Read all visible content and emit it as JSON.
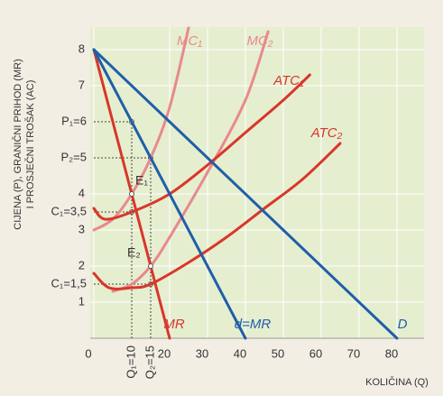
{
  "chart_data": {
    "type": "line",
    "y_axis_label": [
      "CIJENA (P), GRANIČNI PRIHOD (MR)",
      "I PROSJEČNI TROŠAK (AC)"
    ],
    "x_axis_label": "KOLIČINA (Q)",
    "xlim": [
      0,
      85
    ],
    "ylim": [
      0,
      8.5
    ],
    "xticks": [
      0,
      20,
      30,
      40,
      50,
      60,
      70,
      80
    ],
    "yticks": [
      1,
      2,
      3,
      4,
      7,
      8
    ],
    "grid": true,
    "series": [
      {
        "name": "MC₁",
        "color": "#e8898e",
        "x": [
          0,
          5,
          10,
          15,
          20,
          25
        ],
        "values": [
          3,
          3.3,
          4,
          5,
          6.4,
          8.6
        ]
      },
      {
        "name": "MC₂",
        "color": "#e8898e",
        "x": [
          5,
          10,
          15,
          20,
          30,
          40,
          46
        ],
        "values": [
          1.3,
          1.5,
          2,
          2.8,
          4.6,
          6.6,
          8.5
        ]
      },
      {
        "name": "ATC₁",
        "color": "#d8372a",
        "x": [
          0,
          3,
          10,
          20,
          30,
          40,
          50,
          57
        ],
        "values": [
          3.6,
          3.3,
          3.5,
          4,
          4.8,
          5.7,
          6.6,
          7.3
        ]
      },
      {
        "name": "ATC₂",
        "color": "#d8372a",
        "x": [
          0,
          4,
          10,
          15,
          25,
          35,
          45,
          55,
          65
        ],
        "values": [
          1.8,
          1.4,
          1.4,
          1.5,
          2.1,
          2.8,
          3.6,
          4.4,
          5.4
        ]
      },
      {
        "name": "MR",
        "color": "#d8372a",
        "x": [
          0,
          20
        ],
        "values": [
          8,
          0
        ]
      },
      {
        "name": "d=MR",
        "color": "#1f5fa8",
        "x": [
          0,
          40
        ],
        "values": [
          8,
          0
        ]
      },
      {
        "name": "D",
        "color": "#1f5fa8",
        "x": [
          0,
          80
        ],
        "values": [
          8,
          0
        ]
      }
    ],
    "y_guides": [
      {
        "label": "P₁=6",
        "y": 6,
        "x": 10
      },
      {
        "label": "P₂=5",
        "y": 5,
        "x": 15
      },
      {
        "label": "C₁=3,5",
        "y": 3.5,
        "x": 10
      },
      {
        "label": "C₁=1,5",
        "y": 1.5,
        "x": 15
      }
    ],
    "x_guides": [
      {
        "label": "Q₁=10",
        "x": 10,
        "y": 6
      },
      {
        "label": "Q₂=15",
        "x": 15,
        "y": 5
      }
    ],
    "points": [
      {
        "label": "E₁",
        "x": 10,
        "y": 4
      },
      {
        "label": "E₂",
        "x": 15,
        "y": 2
      }
    ]
  }
}
